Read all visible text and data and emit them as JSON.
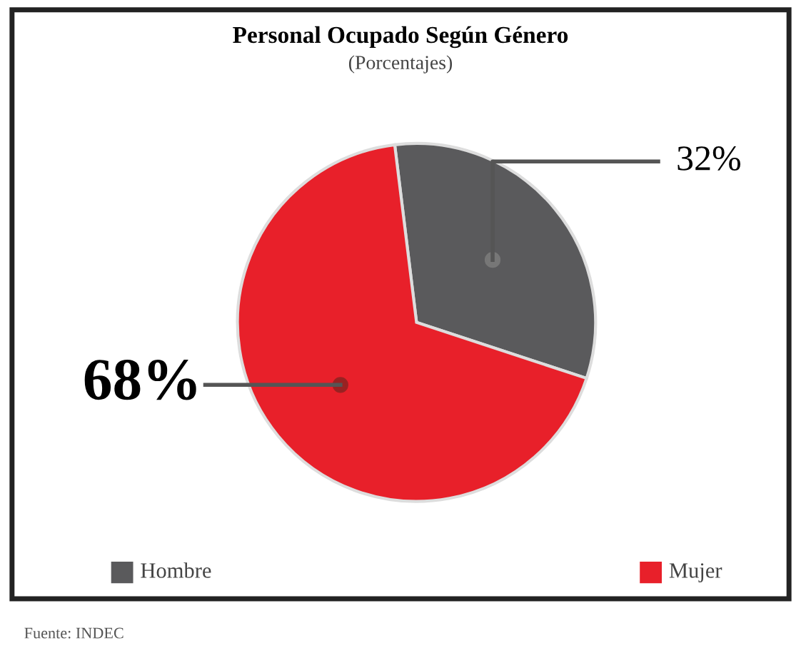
{
  "chart_data": {
    "type": "pie",
    "title": "Personal Ocupado Según Género",
    "subtitle": "(Porcentajes)",
    "categories": [
      "Hombre",
      "Mujer"
    ],
    "values": [
      32,
      68
    ],
    "colors": [
      "#5a5a5c",
      "#e8202a"
    ],
    "value_labels": [
      "32%",
      "68%"
    ],
    "legend": "bottom",
    "annotations": [
      "Fuente: INDEC"
    ]
  }
}
